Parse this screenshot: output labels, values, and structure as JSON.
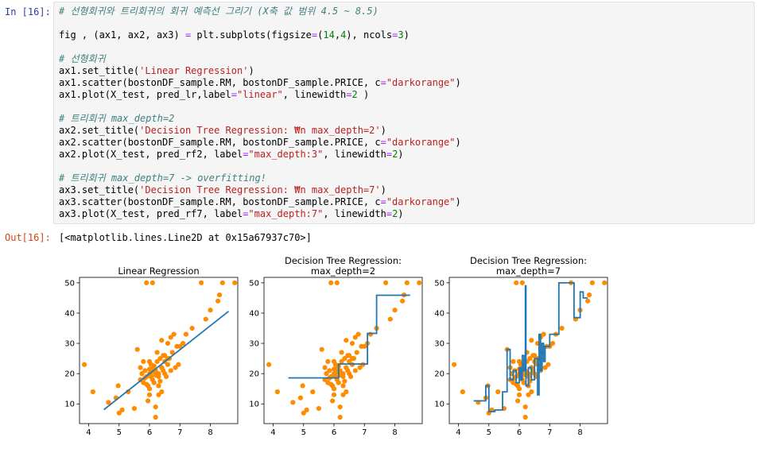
{
  "input_prompt": "In [16]:",
  "output_prompt": "Out[16]:",
  "code_lines": [
    [
      {
        "t": "# 선형회귀와 트리회귀의 회귀 예측선 그리기 (X축 값 범위 4.5 ~ 8.5)",
        "c": "comment"
      }
    ],
    [],
    [
      {
        "t": "fig , (ax1, ax2, ax3) "
      },
      {
        "t": "=",
        "c": "op"
      },
      {
        "t": " plt.subplots(figsize"
      },
      {
        "t": "=",
        "c": "op"
      },
      {
        "t": "("
      },
      {
        "t": "14",
        "c": "num"
      },
      {
        "t": ","
      },
      {
        "t": "4",
        "c": "num"
      },
      {
        "t": "), ncols"
      },
      {
        "t": "=",
        "c": "op"
      },
      {
        "t": "3",
        "c": "num"
      },
      {
        "t": ")"
      }
    ],
    [],
    [
      {
        "t": "# 선형회귀",
        "c": "comment"
      }
    ],
    [
      {
        "t": "ax1.set_title("
      },
      {
        "t": "'Linear Regression'",
        "c": "str"
      },
      {
        "t": ")"
      }
    ],
    [
      {
        "t": "ax1.scatter(bostonDF_sample.RM, bostonDF_sample.PRICE, c"
      },
      {
        "t": "=",
        "c": "op"
      },
      {
        "t": "\"darkorange\"",
        "c": "str"
      },
      {
        "t": ")"
      }
    ],
    [
      {
        "t": "ax1.plot(X_test, pred_lr,label"
      },
      {
        "t": "=",
        "c": "op"
      },
      {
        "t": "\"linear\"",
        "c": "str"
      },
      {
        "t": ", linewidth"
      },
      {
        "t": "=",
        "c": "op"
      },
      {
        "t": "2",
        "c": "num"
      },
      {
        "t": " )"
      }
    ],
    [],
    [
      {
        "t": "# 트리회귀 max_depth=2",
        "c": "comment"
      }
    ],
    [
      {
        "t": "ax2.set_title("
      },
      {
        "t": "'Decision Tree Regression: ₩n max_depth=2'",
        "c": "str"
      },
      {
        "t": ")"
      }
    ],
    [
      {
        "t": "ax2.scatter(bostonDF_sample.RM, bostonDF_sample.PRICE, c"
      },
      {
        "t": "=",
        "c": "op"
      },
      {
        "t": "\"darkorange\"",
        "c": "str"
      },
      {
        "t": ")"
      }
    ],
    [
      {
        "t": "ax2.plot(X_test, pred_rf2, label"
      },
      {
        "t": "=",
        "c": "op"
      },
      {
        "t": "\"max_depth:3\"",
        "c": "str"
      },
      {
        "t": ", linewidth"
      },
      {
        "t": "=",
        "c": "op"
      },
      {
        "t": "2",
        "c": "num"
      },
      {
        "t": ")"
      }
    ],
    [],
    [
      {
        "t": "# 트리회귀 max_depth=7 -> overfitting!",
        "c": "comment"
      }
    ],
    [
      {
        "t": "ax3.set_title("
      },
      {
        "t": "'Decision Tree Regression: ₩n max_depth=7'",
        "c": "str"
      },
      {
        "t": ")"
      }
    ],
    [
      {
        "t": "ax3.scatter(bostonDF_sample.RM, bostonDF_sample.PRICE, c"
      },
      {
        "t": "=",
        "c": "op"
      },
      {
        "t": "\"darkorange\"",
        "c": "str"
      },
      {
        "t": ")"
      }
    ],
    [
      {
        "t": "ax3.plot(X_test, pred_rf7, label"
      },
      {
        "t": "=",
        "c": "op"
      },
      {
        "t": "\"max_depth:7\"",
        "c": "str"
      },
      {
        "t": ", linewidth"
      },
      {
        "t": "=",
        "c": "op"
      },
      {
        "t": "2",
        "c": "num"
      },
      {
        "t": ")"
      }
    ]
  ],
  "output_text": "[<matplotlib.lines.Line2D at 0x15a67937c70>]",
  "colors": {
    "scatter": "#ff8c00",
    "line": "#1f77b4",
    "comment": "#408080",
    "string": "#ba2121",
    "number": "#008000",
    "operator": "#aa22ff"
  },
  "chart_data": [
    {
      "type": "scatter",
      "title": "Linear Regression",
      "xlim": [
        3.7,
        8.9
      ],
      "ylim": [
        3.5,
        51.8
      ],
      "xticks": [
        4,
        5,
        6,
        7,
        8
      ],
      "yticks": [
        10,
        20,
        30,
        40,
        50
      ],
      "scatter_x": [
        3.86,
        4.14,
        4.65,
        4.9,
        4.97,
        5.0,
        5.1,
        5.3,
        5.5,
        5.6,
        5.7,
        5.7,
        5.75,
        5.8,
        5.85,
        5.9,
        5.9,
        5.95,
        6.0,
        6.0,
        6.0,
        6.05,
        6.1,
        6.1,
        6.1,
        6.15,
        6.2,
        6.2,
        6.2,
        6.25,
        6.3,
        6.3,
        6.3,
        6.35,
        6.4,
        6.4,
        6.4,
        6.45,
        6.5,
        6.5,
        6.55,
        6.6,
        6.6,
        6.65,
        6.7,
        6.7,
        6.75,
        6.8,
        6.85,
        6.9,
        6.95,
        7.0,
        7.1,
        7.2,
        7.4,
        7.7,
        7.85,
        8.0,
        8.25,
        8.3,
        8.4,
        8.8,
        5.9,
        6.2,
        5.85,
        6.0,
        6.1,
        6.15,
        6.3,
        6.35,
        6.5,
        6.6,
        5.8,
        6.45,
        6.0,
        6.25,
        6.05,
        5.95,
        6.4
      ],
      "scatter_y": [
        23,
        14,
        10.5,
        12,
        16,
        7,
        8,
        14,
        8.5,
        28,
        22,
        18,
        20,
        17,
        21,
        19,
        50,
        11,
        24,
        20,
        15,
        23,
        18,
        22,
        50,
        17,
        21,
        9,
        5.6,
        24,
        20,
        16,
        13,
        25,
        22,
        31,
        14,
        26,
        24,
        20,
        19,
        23,
        30,
        25,
        32,
        21,
        27,
        33,
        22,
        29,
        23,
        29,
        30,
        33,
        35,
        50,
        38,
        41,
        44,
        46,
        50,
        50,
        16.5,
        19.5,
        18.5,
        21.5,
        20.5,
        22.5,
        19,
        17.5,
        26,
        25,
        24,
        21,
        13,
        27,
        19,
        16,
        22
      ],
      "line": [
        [
          4.5,
          8.1
        ],
        [
          8.6,
          40.6
        ]
      ]
    },
    {
      "type": "scatter",
      "title": "Decision Tree Regression:",
      "subtitle": "max_depth=2",
      "xlim": [
        3.7,
        8.9
      ],
      "ylim": [
        3.5,
        51.8
      ],
      "xticks": [
        4,
        5,
        6,
        7,
        8
      ],
      "yticks": [
        10,
        20,
        30,
        40,
        50
      ],
      "scatter_x": [
        3.86,
        4.14,
        4.65,
        4.9,
        4.97,
        5.0,
        5.1,
        5.3,
        5.5,
        5.6,
        5.7,
        5.7,
        5.75,
        5.8,
        5.85,
        5.9,
        5.9,
        5.95,
        6.0,
        6.0,
        6.0,
        6.05,
        6.1,
        6.1,
        6.1,
        6.15,
        6.2,
        6.2,
        6.2,
        6.25,
        6.3,
        6.3,
        6.3,
        6.35,
        6.4,
        6.4,
        6.4,
        6.45,
        6.5,
        6.5,
        6.55,
        6.6,
        6.6,
        6.65,
        6.7,
        6.7,
        6.75,
        6.8,
        6.85,
        6.9,
        6.95,
        7.0,
        7.1,
        7.2,
        7.4,
        7.7,
        7.85,
        8.0,
        8.25,
        8.3,
        8.4,
        8.8,
        5.9,
        6.2,
        5.85,
        6.0,
        6.1,
        6.15,
        6.3,
        6.35,
        6.5,
        6.6,
        5.8,
        6.45,
        6.0,
        6.25,
        6.05,
        5.95,
        6.4
      ],
      "scatter_y": [
        23,
        14,
        10.5,
        12,
        16,
        7,
        8,
        14,
        8.5,
        28,
        22,
        18,
        20,
        17,
        21,
        19,
        50,
        11,
        24,
        20,
        15,
        23,
        18,
        22,
        50,
        17,
        21,
        9,
        5.6,
        24,
        20,
        16,
        13,
        25,
        22,
        31,
        14,
        26,
        24,
        20,
        19,
        23,
        30,
        25,
        32,
        21,
        27,
        33,
        22,
        29,
        23,
        29,
        30,
        33,
        35,
        50,
        38,
        41,
        44,
        46,
        50,
        50,
        16.5,
        19.5,
        18.5,
        21.5,
        20.5,
        22.5,
        19,
        17.5,
        26,
        25,
        24,
        21,
        13,
        27,
        19,
        16,
        22
      ],
      "line": [
        [
          4.5,
          18.6
        ],
        [
          6.15,
          18.6
        ],
        [
          6.15,
          23.2
        ],
        [
          6.9,
          23.2
        ],
        [
          6.9,
          23.2
        ],
        [
          7.1,
          23.2
        ],
        [
          7.1,
          33.3
        ],
        [
          7.4,
          33.3
        ],
        [
          7.4,
          45.9
        ],
        [
          8.5,
          45.9
        ]
      ]
    },
    {
      "type": "scatter",
      "title": "Decision Tree Regression:",
      "subtitle": "max_depth=7",
      "xlim": [
        3.7,
        8.9
      ],
      "ylim": [
        3.5,
        51.8
      ],
      "xticks": [
        4,
        5,
        6,
        7,
        8
      ],
      "yticks": [
        10,
        20,
        30,
        40,
        50
      ],
      "scatter_x": [
        3.86,
        4.14,
        4.65,
        4.9,
        4.97,
        5.0,
        5.1,
        5.3,
        5.5,
        5.6,
        5.7,
        5.7,
        5.75,
        5.8,
        5.85,
        5.9,
        5.9,
        5.95,
        6.0,
        6.0,
        6.0,
        6.05,
        6.1,
        6.1,
        6.1,
        6.15,
        6.2,
        6.2,
        6.2,
        6.25,
        6.3,
        6.3,
        6.3,
        6.35,
        6.4,
        6.4,
        6.4,
        6.45,
        6.5,
        6.5,
        6.55,
        6.6,
        6.6,
        6.65,
        6.7,
        6.7,
        6.75,
        6.8,
        6.85,
        6.9,
        6.95,
        7.0,
        7.1,
        7.2,
        7.4,
        7.7,
        7.85,
        8.0,
        8.25,
        8.3,
        8.4,
        8.8,
        5.9,
        6.2,
        5.85,
        6.0,
        6.1,
        6.15,
        6.3,
        6.35,
        6.5,
        6.6,
        5.8,
        6.45,
        6.0,
        6.25,
        6.05,
        5.95,
        6.4
      ],
      "scatter_y": [
        23,
        14,
        10.5,
        12,
        16,
        7,
        8,
        14,
        8.5,
        28,
        22,
        18,
        20,
        17,
        21,
        19,
        50,
        11,
        24,
        20,
        15,
        23,
        18,
        22,
        50,
        17,
        21,
        9,
        5.6,
        24,
        20,
        16,
        13,
        25,
        22,
        31,
        14,
        26,
        24,
        20,
        19,
        23,
        30,
        25,
        32,
        21,
        27,
        33,
        22,
        29,
        23,
        29,
        30,
        33,
        35,
        50,
        38,
        41,
        44,
        46,
        50,
        50,
        16.5,
        19.5,
        18.5,
        21.5,
        20.5,
        22.5,
        19,
        17.5,
        26,
        25,
        24,
        21,
        13,
        27,
        19,
        16,
        22
      ],
      "line": [
        [
          4.5,
          11
        ],
        [
          4.9,
          11
        ],
        [
          4.9,
          16
        ],
        [
          5.0,
          16
        ],
        [
          5.0,
          7.5
        ],
        [
          5.2,
          7.5
        ],
        [
          5.2,
          8
        ],
        [
          5.45,
          8
        ],
        [
          5.45,
          14
        ],
        [
          5.6,
          14
        ],
        [
          5.6,
          28
        ],
        [
          5.7,
          28
        ],
        [
          5.7,
          18
        ],
        [
          5.8,
          18
        ],
        [
          5.8,
          21
        ],
        [
          5.9,
          21
        ],
        [
          5.9,
          17
        ],
        [
          6.0,
          17
        ],
        [
          6.0,
          22
        ],
        [
          6.05,
          22
        ],
        [
          6.05,
          18
        ],
        [
          6.1,
          18
        ],
        [
          6.1,
          26
        ],
        [
          6.15,
          26
        ],
        [
          6.15,
          21
        ],
        [
          6.2,
          21
        ],
        [
          6.2,
          49
        ],
        [
          6.22,
          49
        ],
        [
          6.22,
          16
        ],
        [
          6.3,
          16
        ],
        [
          6.3,
          22
        ],
        [
          6.4,
          22
        ],
        [
          6.4,
          18
        ],
        [
          6.5,
          18
        ],
        [
          6.5,
          25
        ],
        [
          6.6,
          25
        ],
        [
          6.6,
          13
        ],
        [
          6.65,
          13
        ],
        [
          6.65,
          33
        ],
        [
          6.7,
          33
        ],
        [
          6.7,
          21
        ],
        [
          6.75,
          21
        ],
        [
          6.75,
          30
        ],
        [
          6.8,
          30
        ],
        [
          6.8,
          24
        ],
        [
          6.85,
          24
        ],
        [
          6.85,
          29
        ],
        [
          7.0,
          29
        ],
        [
          7.0,
          33
        ],
        [
          7.3,
          33
        ],
        [
          7.3,
          50
        ],
        [
          7.8,
          50
        ],
        [
          7.8,
          38.5
        ],
        [
          8.0,
          38.5
        ],
        [
          8.0,
          47
        ],
        [
          8.1,
          47
        ],
        [
          8.1,
          45
        ],
        [
          8.25,
          45
        ]
      ]
    }
  ]
}
